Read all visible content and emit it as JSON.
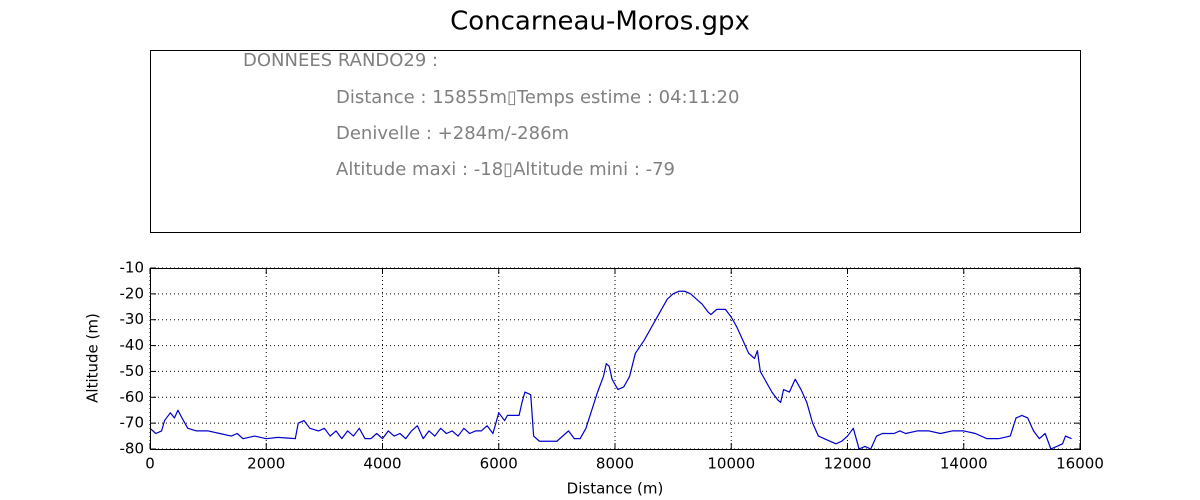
{
  "info_panel": {
    "heading": "DONNEES RANDO29  :",
    "lines": [
      "Distance : 15855m▯Temps estime : 04:11:20",
      "Denivelle : +284m/-286m",
      "Altitude maxi : -18▯Altitude mini : -79"
    ]
  },
  "chart_data": {
    "type": "line",
    "title": "Concarneau-Moros.gpx",
    "xlabel": "Distance (m)",
    "ylabel": "Altitude (m)",
    "xlim": [
      0,
      16000
    ],
    "ylim": [
      -80,
      -10
    ],
    "xticks": [
      0,
      2000,
      4000,
      6000,
      8000,
      10000,
      12000,
      14000,
      16000
    ],
    "yticks": [
      -10,
      -20,
      -30,
      -40,
      -50,
      -60,
      -70,
      -80
    ],
    "grid": true,
    "x": [
      0,
      100,
      200,
      250,
      350,
      420,
      480,
      550,
      650,
      800,
      1000,
      1200,
      1400,
      1500,
      1600,
      1800,
      2000,
      2200,
      2500,
      2550,
      2650,
      2750,
      2900,
      3000,
      3100,
      3200,
      3300,
      3400,
      3500,
      3600,
      3700,
      3800,
      3900,
      4000,
      4100,
      4200,
      4300,
      4400,
      4500,
      4600,
      4700,
      4800,
      4900,
      5000,
      5100,
      5200,
      5300,
      5400,
      5500,
      5600,
      5700,
      5800,
      5900,
      6000,
      6100,
      6150,
      6250,
      6350,
      6400,
      6450,
      6550,
      6600,
      6700,
      6800,
      7000,
      7200,
      7300,
      7400,
      7500,
      7600,
      7700,
      7800,
      7850,
      7900,
      7950,
      8050,
      8150,
      8250,
      8350,
      8500,
      8700,
      8900,
      9000,
      9100,
      9200,
      9300,
      9400,
      9500,
      9600,
      9650,
      9750,
      9900,
      10000,
      10100,
      10200,
      10300,
      10400,
      10450,
      10500,
      10600,
      10700,
      10800,
      10850,
      10900,
      11000,
      11100,
      11200,
      11300,
      11400,
      11500,
      11600,
      11800,
      11900,
      12000,
      12100,
      12150,
      12200,
      12300,
      12400,
      12500,
      12600,
      12800,
      12900,
      13000,
      13200,
      13400,
      13600,
      13800,
      14000,
      14200,
      14400,
      14600,
      14800,
      14900,
      15000,
      15100,
      15200,
      15300,
      15400,
      15500,
      15600,
      15700,
      15750,
      15855
    ],
    "series": [
      {
        "color": "#0000cc",
        "values": [
          -72,
          -74,
          -73,
          -69,
          -66,
          -68,
          -65,
          -68,
          -72,
          -73,
          -73,
          -74,
          -75,
          -74,
          -76,
          -75,
          -76,
          -75.5,
          -76,
          -70,
          -69,
          -72,
          -73,
          -72,
          -75,
          -73,
          -76,
          -73,
          -75,
          -72,
          -76,
          -76,
          -74,
          -76,
          -73,
          -75,
          -74,
          -76,
          -73,
          -71,
          -76,
          -73,
          -75,
          -72,
          -74,
          -73,
          -75,
          -72,
          -74,
          -73,
          -73,
          -71,
          -74,
          -66,
          -69,
          -67,
          -67,
          -67,
          -62,
          -58,
          -59,
          -75,
          -77,
          -77,
          -77,
          -73,
          -76,
          -76,
          -72,
          -65,
          -58,
          -52,
          -47,
          -48,
          -53,
          -57,
          -56,
          -52,
          -43,
          -38,
          -30,
          -22,
          -20,
          -19,
          -19,
          -20,
          -22,
          -24,
          -27,
          -28,
          -26,
          -26,
          -29,
          -33,
          -38,
          -43,
          -45,
          -42,
          -50,
          -54,
          -58,
          -61,
          -62,
          -57,
          -58,
          -53,
          -57,
          -62,
          -70,
          -75,
          -76,
          -78,
          -77,
          -75,
          -72,
          -76,
          -80,
          -79,
          -80,
          -75,
          -74,
          -74,
          -73,
          -74,
          -73,
          -73,
          -74,
          -73,
          -73,
          -74,
          -76,
          -76,
          -75,
          -68,
          -67,
          -68,
          -73,
          -76,
          -74,
          -80,
          -79,
          -78,
          -75,
          -76
        ]
      }
    ]
  }
}
